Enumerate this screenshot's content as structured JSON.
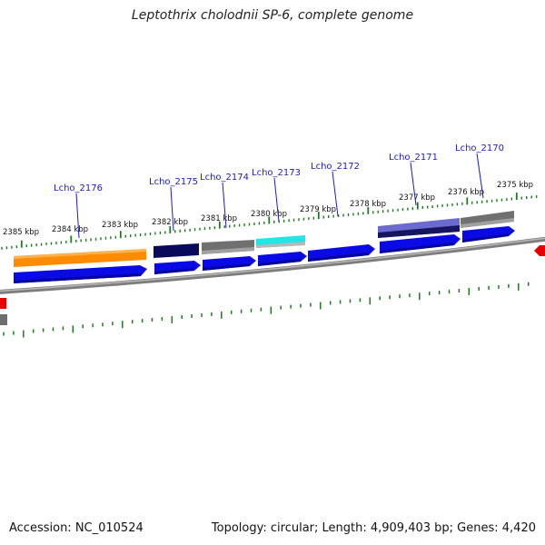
{
  "title": "Leptothrix cholodnii SP-6, complete genome",
  "footer": {
    "accession": "Accession: NC_010524",
    "summary": "Topology: circular; Length: 4,909,403 bp; Genes: 4,420"
  },
  "colors": {
    "backbone": "#8a8a8a",
    "tick": "#1e7a1e",
    "label": "#1a1acc",
    "cds": "#0a0ae6",
    "gene_orange": "#ff8c00",
    "gene_navy": "#0a0a5a",
    "gene_gray": "#6e6e6e",
    "gene_cyan": "#22e6e6",
    "gene_purple": "#6464c8",
    "offscreen_red": "#e60000"
  },
  "scale_labels": [
    "2385 kbp",
    "2384 kbp",
    "2383 kbp",
    "2382 kbp",
    "2381 kbp",
    "2380 kbp",
    "2379 kbp",
    "2378 kbp",
    "2377 kbp",
    "2376 kbp",
    "2375 kbp"
  ],
  "gene_labels": [
    "Lcho_2176",
    "Lcho_2175",
    "Lcho_2174",
    "Lcho_2173",
    "Lcho_2172",
    "Lcho_2171",
    "Lcho_2170"
  ]
}
